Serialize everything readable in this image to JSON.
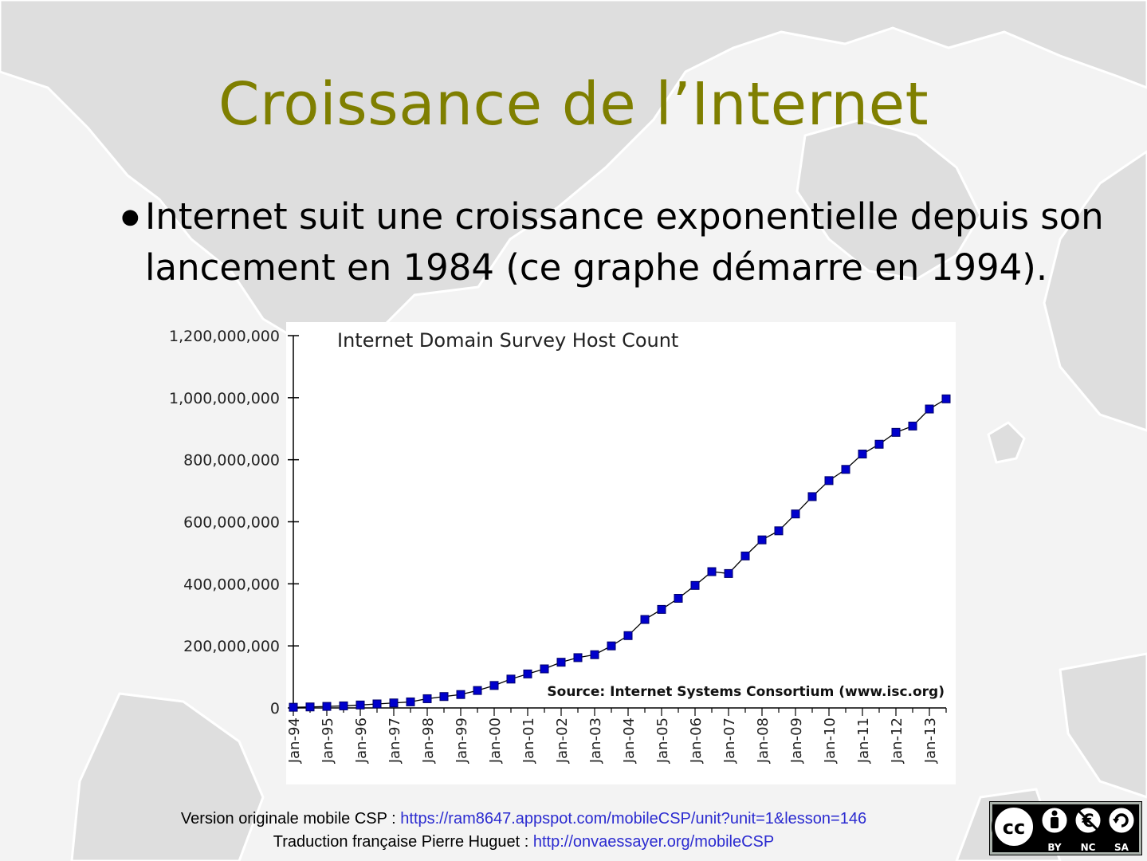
{
  "slide": {
    "title": "Croissance de l’Internet",
    "bullet_text": "Internet suit une croissance exponentielle depuis son lancement en 1984 (ce graphe démarre en 1994)."
  },
  "footer": {
    "line1_prefix": "Version originale mobile CSP : ",
    "line1_link": "https://ram8647.appspot.com/mobileCSP/unit?unit=1&lesson=146",
    "line2_prefix": "Traduction française Pierre Huguet : ",
    "line2_link": "http://onvaessayer.org/mobileCSP"
  },
  "license_badge": {
    "cc": "cc",
    "labels": [
      "BY",
      "NC",
      "SA"
    ]
  },
  "colors": {
    "title": "#7f7f00",
    "marker": "#0000cc",
    "link": "#2b2bd0"
  },
  "chart_data": {
    "type": "line",
    "title": "Internet Domain Survey Host Count",
    "annotation": "Source: Internet Systems Consortium (www.isc.org)",
    "ylim": [
      0,
      1200000000
    ],
    "yticks": [
      "0",
      "200,000,000",
      "400,000,000",
      "600,000,000",
      "800,000,000",
      "1,000,000,000",
      "1,200,000,000"
    ],
    "ytick_values": [
      0,
      200000000,
      400000000,
      600000000,
      800000000,
      1000000000,
      1200000000
    ],
    "x_tick_labels": [
      "Jan-94",
      "Jan-95",
      "Jan-96",
      "Jan-97",
      "Jan-98",
      "Jan-99",
      "Jan-00",
      "Jan-01",
      "Jan-02",
      "Jan-03",
      "Jan-04",
      "Jan-05",
      "Jan-06",
      "Jan-07",
      "Jan-08",
      "Jan-09",
      "Jan-10",
      "Jan-11",
      "Jan-12",
      "Jan-13"
    ],
    "x": [
      "Jan-94",
      "Jul-94",
      "Jan-95",
      "Jul-95",
      "Jan-96",
      "Jul-96",
      "Jan-97",
      "Jul-97",
      "Jan-98",
      "Jul-98",
      "Jan-99",
      "Jul-99",
      "Jan-00",
      "Jul-00",
      "Jan-01",
      "Jul-01",
      "Jan-02",
      "Jul-02",
      "Jan-03",
      "Jul-03",
      "Jan-04",
      "Jul-04",
      "Jan-05",
      "Jul-05",
      "Jan-06",
      "Jul-06",
      "Jan-07",
      "Jul-07",
      "Jan-08",
      "Jul-08",
      "Jan-09",
      "Jul-09",
      "Jan-10",
      "Jul-10",
      "Jan-11",
      "Jul-11",
      "Jan-12",
      "Jul-12",
      "Jan-13",
      "Jul-13"
    ],
    "series": [
      {
        "values": [
          2200000,
          3200000,
          4900000,
          6600000,
          9500000,
          12900000,
          16100000,
          19500000,
          29700000,
          36700000,
          43200000,
          56200000,
          72400000,
          93000000,
          109600000,
          125900000,
          147300000,
          162100000,
          171600000,
          200000000,
          233100000,
          285100000,
          317600000,
          353300000,
          394900000,
          439300000,
          433200000,
          489800000,
          541700000,
          570900000,
          625200000,
          681100000,
          732700000,
          768900000,
          818400000,
          849900000,
          888200000,
          908600000,
          963500000,
          996200000
        ]
      }
    ],
    "grid": false,
    "legend": "none"
  }
}
